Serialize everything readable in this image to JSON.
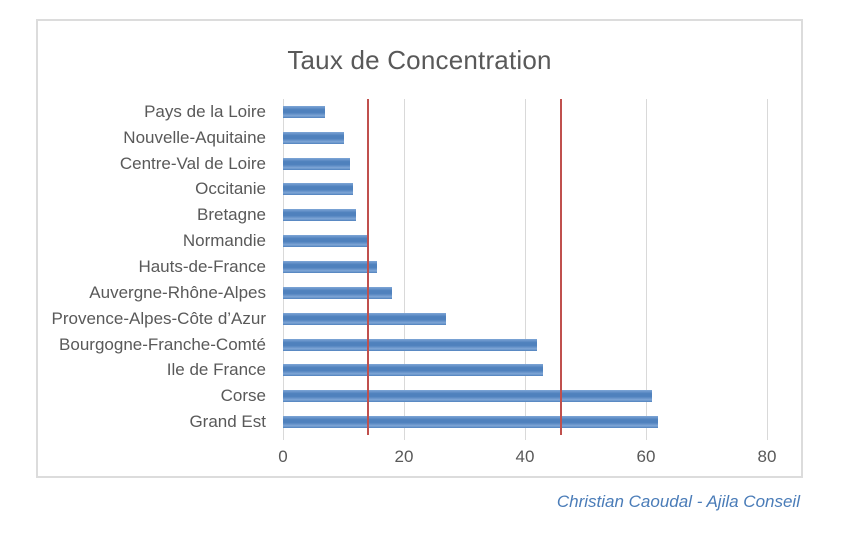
{
  "chart_data": {
    "type": "bar",
    "orientation": "horizontal",
    "title": "Taux de Concentration",
    "categories": [
      "Pays de la Loire",
      "Nouvelle-Aquitaine",
      "Centre-Val de Loire",
      "Occitanie",
      "Bretagne",
      "Normandie",
      "Hauts-de-France",
      "Auvergne-Rhône-Alpes",
      "Provence-Alpes-Côte d’Azur",
      "Bourgogne-Franche-Comté",
      "Ile de France",
      "Corse",
      "Grand Est"
    ],
    "values": [
      7,
      10,
      11,
      11.5,
      12,
      14,
      15.5,
      18,
      27,
      42,
      43,
      61,
      62
    ],
    "xlabel": "",
    "ylabel": "",
    "xlim": [
      0,
      80
    ],
    "x_ticks": [
      0,
      20,
      40,
      60,
      80
    ],
    "reference_lines": [
      14,
      46
    ],
    "grid": true,
    "legend": false,
    "colors": {
      "bar": "#4F81BD",
      "bar_light": "#7FA6D6",
      "ref_line": "#C0504D",
      "grid": "#D9D9D9",
      "text": "#595959",
      "title": "#595959",
      "credit": "#4A7CB8",
      "border": "#DCDCDC"
    }
  },
  "footer": {
    "credit": "Christian Caoudal - Ajila Conseil"
  }
}
